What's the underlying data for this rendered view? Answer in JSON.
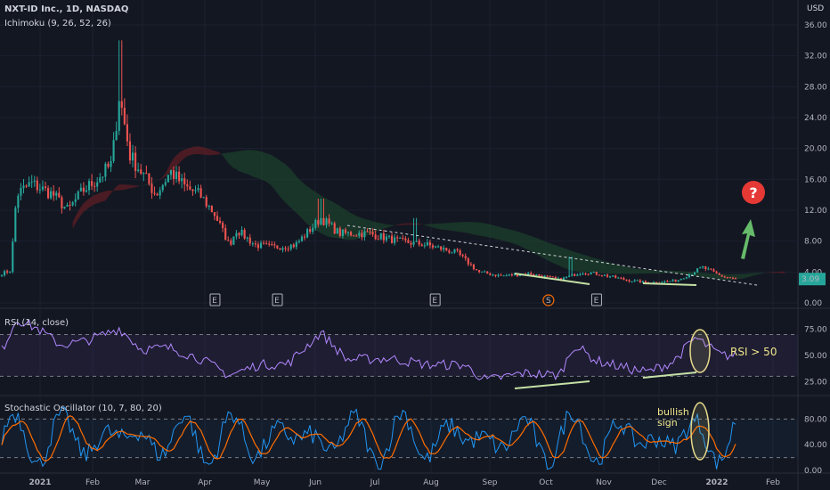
{
  "header": {
    "title": "NXT-ID Inc., 1D, NASDAQ",
    "indicator": "Ichimoku (9, 26, 52, 26)",
    "currency": "USD"
  },
  "colors": {
    "background": "#131722",
    "up": "#26a69a",
    "down": "#ef5350",
    "cloud_bear": "#7a1f24",
    "cloud_bull": "#1f4d2e",
    "rsi_line": "#b388ff",
    "stoch_k": "#2196f3",
    "stoch_d": "#ff6d00",
    "trendline": "#c5e1a5",
    "arrow": "#66bb6a",
    "question": "#e53935"
  },
  "chart_data": [
    {
      "type": "candlestick",
      "name": "price",
      "y_ticks": [
        "36.00",
        "32.00",
        "28.00",
        "24.00",
        "20.00",
        "16.00",
        "12.00",
        "8.00",
        "4.00",
        "0.00"
      ],
      "ylim": [
        0,
        36
      ],
      "x_ticks": [
        "2021",
        "Feb",
        "Mar",
        "Apr",
        "May",
        "Jun",
        "Jul",
        "Aug",
        "Sep",
        "Oct",
        "Nov",
        "Dec",
        "2022",
        "Feb"
      ],
      "last_price": "3.09",
      "keypoints": [
        {
          "t": 0.0,
          "close": 3.8
        },
        {
          "t": 0.012,
          "close": 4.2
        },
        {
          "t": 0.02,
          "close": 14.0
        },
        {
          "t": 0.04,
          "close": 15.5
        },
        {
          "t": 0.07,
          "close": 14.0
        },
        {
          "t": 0.09,
          "close": 12.0
        },
        {
          "t": 0.11,
          "close": 14.5
        },
        {
          "t": 0.13,
          "close": 16.0
        },
        {
          "t": 0.15,
          "close": 18.0
        },
        {
          "t": 0.16,
          "close": 27.0
        },
        {
          "t": 0.175,
          "close": 19.0
        },
        {
          "t": 0.19,
          "close": 17.0
        },
        {
          "t": 0.21,
          "close": 14.0
        },
        {
          "t": 0.23,
          "close": 17.0
        },
        {
          "t": 0.25,
          "close": 15.0
        },
        {
          "t": 0.27,
          "close": 14.0
        },
        {
          "t": 0.29,
          "close": 11.5
        },
        {
          "t": 0.31,
          "close": 7.5
        },
        {
          "t": 0.32,
          "close": 9.5
        },
        {
          "t": 0.345,
          "close": 7.5
        },
        {
          "t": 0.37,
          "close": 7.2
        },
        {
          "t": 0.4,
          "close": 7.5
        },
        {
          "t": 0.42,
          "close": 9.5
        },
        {
          "t": 0.435,
          "close": 11.0
        },
        {
          "t": 0.46,
          "close": 9.0
        },
        {
          "t": 0.5,
          "close": 9.0
        },
        {
          "t": 0.54,
          "close": 8.0
        },
        {
          "t": 0.58,
          "close": 7.5
        },
        {
          "t": 0.62,
          "close": 6.5
        },
        {
          "t": 0.65,
          "close": 4.0
        },
        {
          "t": 0.68,
          "close": 3.5
        },
        {
          "t": 0.72,
          "close": 3.8
        },
        {
          "t": 0.76,
          "close": 3.0
        },
        {
          "t": 0.79,
          "close": 4.0
        },
        {
          "t": 0.81,
          "close": 3.8
        },
        {
          "t": 0.85,
          "close": 3.0
        },
        {
          "t": 0.88,
          "close": 2.6
        },
        {
          "t": 0.92,
          "close": 2.9
        },
        {
          "t": 0.955,
          "close": 4.6
        },
        {
          "t": 0.98,
          "close": 3.5
        },
        {
          "t": 1.0,
          "close": 3.09
        }
      ],
      "spikes": [
        {
          "t": 0.16,
          "high": 34.0
        },
        {
          "t": 0.435,
          "high": 13.5
        },
        {
          "t": 0.562,
          "high": 11.0
        },
        {
          "t": 0.775,
          "high": 6.0
        }
      ],
      "events": [
        {
          "label": "E",
          "t": 0.29
        },
        {
          "label": "E",
          "t": 0.375
        },
        {
          "label": "E",
          "t": 0.59
        },
        {
          "label": "S",
          "t": 0.745
        },
        {
          "label": "E",
          "t": 0.81
        }
      ]
    },
    {
      "type": "line",
      "name": "RSI (14, close)",
      "y_ticks": [
        "75.00",
        "50.00",
        "25.00"
      ],
      "levels": [
        70,
        30
      ],
      "ylim": [
        15,
        90
      ],
      "keypoints": [
        {
          "t": 0.0,
          "v": 55
        },
        {
          "t": 0.02,
          "v": 85
        },
        {
          "t": 0.05,
          "v": 75
        },
        {
          "t": 0.08,
          "v": 60
        },
        {
          "t": 0.11,
          "v": 63
        },
        {
          "t": 0.14,
          "v": 70
        },
        {
          "t": 0.16,
          "v": 76
        },
        {
          "t": 0.19,
          "v": 56
        },
        {
          "t": 0.23,
          "v": 57
        },
        {
          "t": 0.27,
          "v": 47
        },
        {
          "t": 0.31,
          "v": 31
        },
        {
          "t": 0.35,
          "v": 41
        },
        {
          "t": 0.39,
          "v": 42
        },
        {
          "t": 0.435,
          "v": 72
        },
        {
          "t": 0.47,
          "v": 46
        },
        {
          "t": 0.53,
          "v": 47
        },
        {
          "t": 0.58,
          "v": 41
        },
        {
          "t": 0.63,
          "v": 41
        },
        {
          "t": 0.66,
          "v": 26
        },
        {
          "t": 0.71,
          "v": 33
        },
        {
          "t": 0.76,
          "v": 31
        },
        {
          "t": 0.78,
          "v": 60
        },
        {
          "t": 0.81,
          "v": 45
        },
        {
          "t": 0.85,
          "v": 38
        },
        {
          "t": 0.88,
          "v": 34
        },
        {
          "t": 0.915,
          "v": 44
        },
        {
          "t": 0.945,
          "v": 67
        },
        {
          "t": 0.98,
          "v": 50
        }
      ]
    },
    {
      "type": "line",
      "name": "Stochastic Oscillator (10, 7, 80, 20)",
      "y_ticks": [
        "80.00",
        "40.00",
        "0.00"
      ],
      "levels": [
        80,
        20
      ],
      "ylim": [
        0,
        100
      ]
    }
  ],
  "annotations": {
    "rsi_note": "RSI > 50",
    "stoch_note_line1": "bullish",
    "stoch_note_line2": "sign"
  }
}
